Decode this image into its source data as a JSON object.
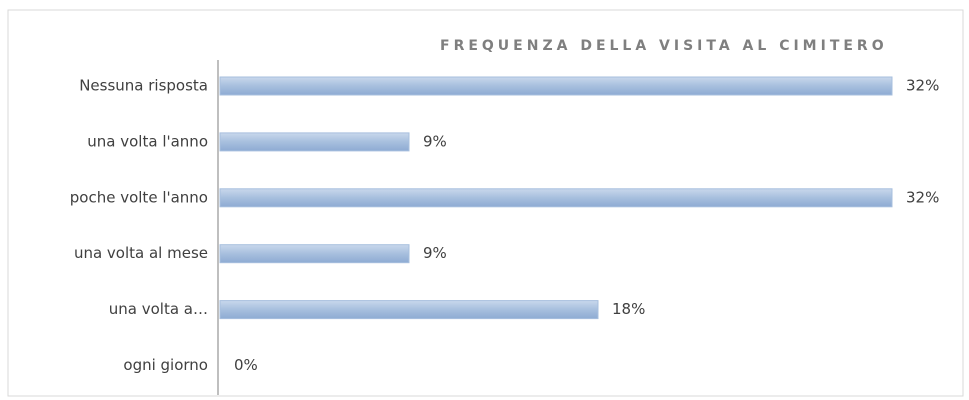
{
  "chart_data": {
    "type": "bar",
    "orientation": "horizontal",
    "title": "FREQUENZA DELLA VISITA AL CIMITERO",
    "categories": [
      "Nessuna risposta",
      "una volta l'anno",
      "poche volte l'anno",
      "una volta al mese",
      "una volta a…",
      "ogni giorno"
    ],
    "values": [
      32,
      9,
      32,
      9,
      18,
      0
    ],
    "value_labels": [
      "32%",
      "9%",
      "32%",
      "9%",
      "18%",
      "0%"
    ],
    "color": "#a7bfde"
  }
}
